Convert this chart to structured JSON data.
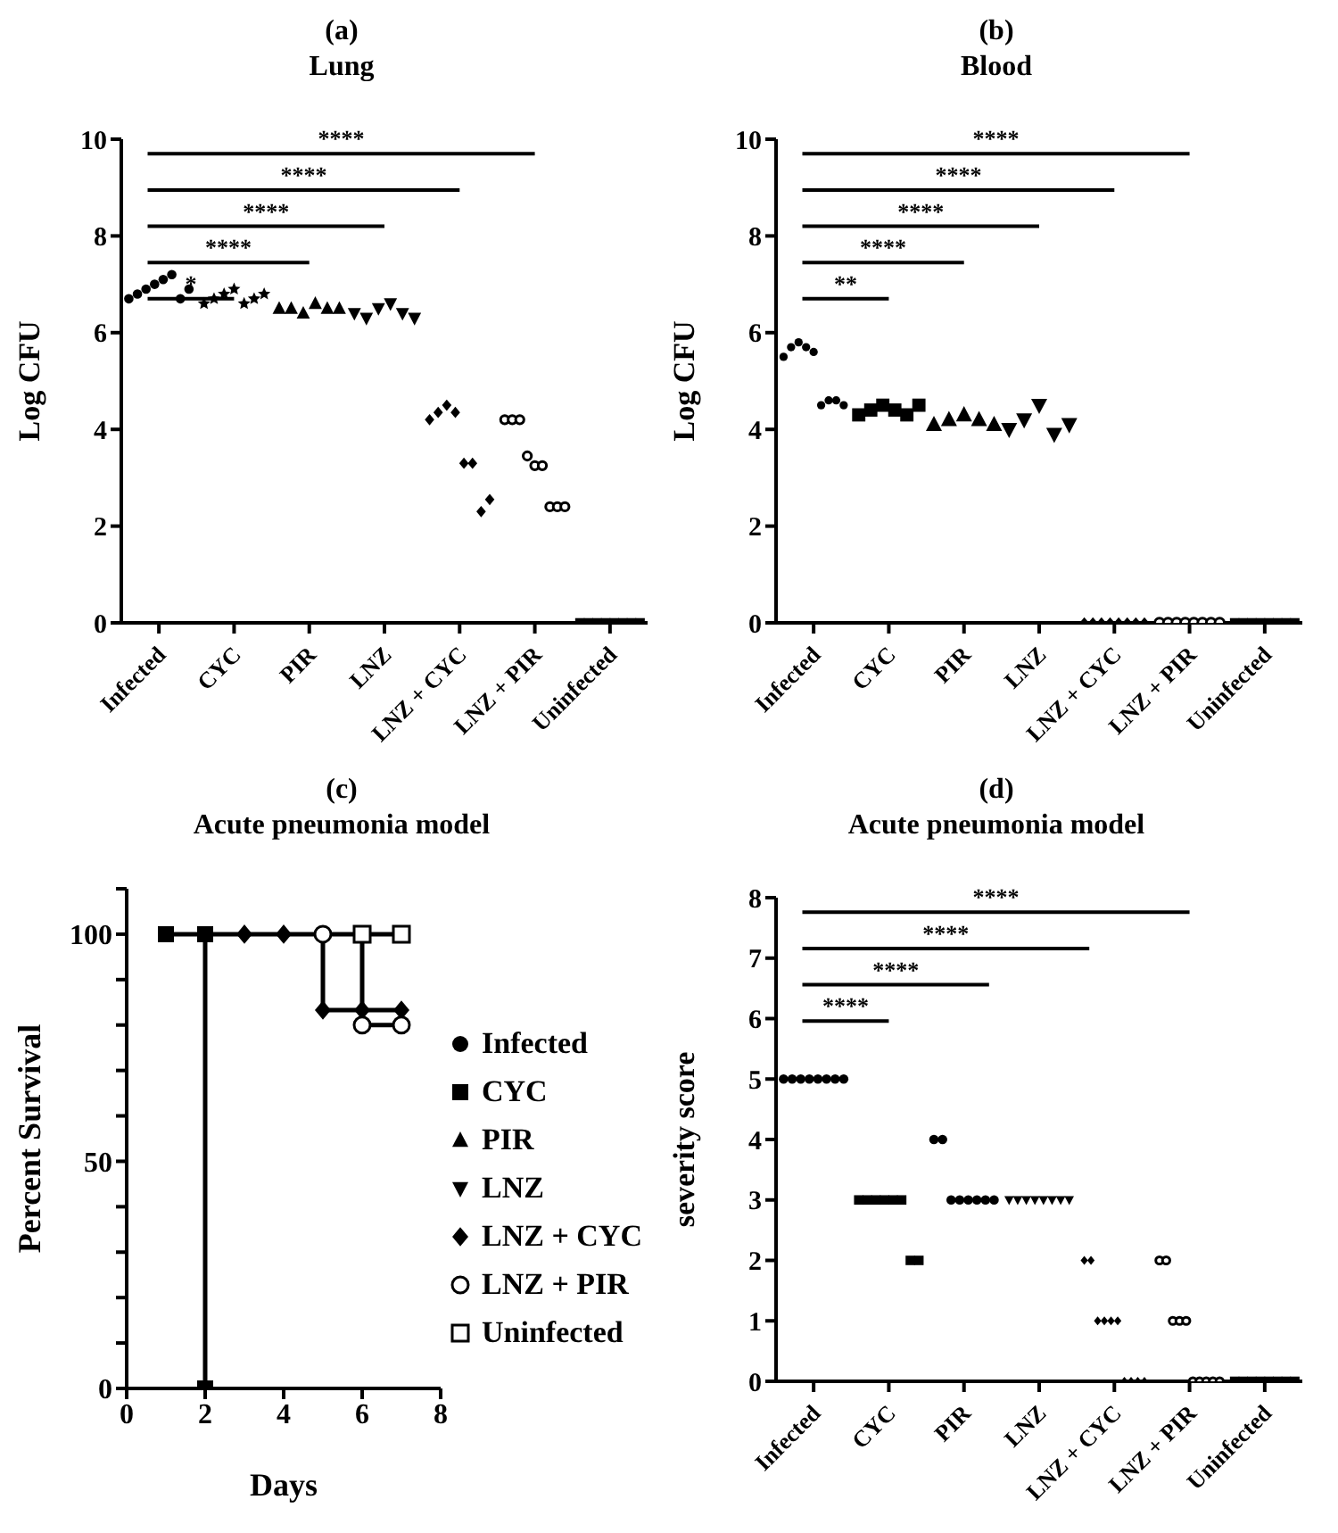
{
  "chart_data": [
    {
      "type": "scatter",
      "title": "(a)",
      "subtitle": "Lung",
      "ylabel": "Log CFU",
      "categories": [
        "Infected",
        "CYC",
        "PIR",
        "LNZ",
        "LNZ + CYC",
        "LNZ + PIR",
        "Uninfected"
      ],
      "ylim": [
        0,
        10
      ],
      "yticks": [
        0,
        2,
        4,
        6,
        8,
        10
      ],
      "series": [
        {
          "color": "#000000",
          "marker": "circle",
          "x": [
            "Infected",
            "Infected",
            "Infected",
            "Infected",
            "Infected",
            "Infected",
            "Infected",
            "Infected"
          ],
          "values": [
            6.7,
            6.8,
            6.9,
            7.0,
            7.1,
            7.2,
            6.7,
            6.9
          ]
        },
        {
          "color": "#000000",
          "marker": "star",
          "x": [
            "CYC",
            "CYC",
            "CYC",
            "CYC",
            "CYC",
            "CYC",
            "CYC"
          ],
          "values": [
            6.6,
            6.7,
            6.8,
            6.9,
            6.6,
            6.7,
            6.8
          ]
        },
        {
          "color": "#000000",
          "marker": "triangle",
          "x": [
            "PIR",
            "PIR",
            "PIR",
            "PIR",
            "PIR",
            "PIR"
          ],
          "values": [
            6.5,
            6.5,
            6.4,
            6.6,
            6.5,
            6.5
          ]
        },
        {
          "color": "#000000",
          "marker": "triangle-down",
          "x": [
            "LNZ",
            "LNZ",
            "LNZ",
            "LNZ",
            "LNZ",
            "LNZ"
          ],
          "values": [
            6.4,
            6.3,
            6.5,
            6.6,
            6.4,
            6.3
          ]
        },
        {
          "color": "#000000",
          "marker": "diamond",
          "x": [
            "LNZ + CYC",
            "LNZ + CYC",
            "LNZ + CYC",
            "LNZ + CYC",
            "LNZ + CYC",
            "LNZ + CYC",
            "LNZ + CYC",
            "LNZ + CYC"
          ],
          "values": [
            4.2,
            4.35,
            4.5,
            4.35,
            3.3,
            3.3,
            2.3,
            2.55
          ]
        },
        {
          "color": "#000000",
          "marker": "circle-open",
          "x": [
            "LNZ + PIR",
            "LNZ + PIR",
            "LNZ + PIR",
            "LNZ + PIR",
            "LNZ + PIR",
            "LNZ + PIR",
            "LNZ + PIR",
            "LNZ + PIR",
            "LNZ + PIR"
          ],
          "values": [
            4.2,
            4.2,
            4.2,
            3.45,
            3.25,
            3.25,
            2.4,
            2.4,
            2.4
          ]
        },
        {
          "color": "#000000",
          "marker": "square",
          "x": [
            "Uninfected",
            "Uninfected",
            "Uninfected",
            "Uninfected",
            "Uninfected",
            "Uninfected",
            "Uninfected",
            "Uninfected"
          ],
          "values": [
            0,
            0,
            0,
            0,
            0,
            0,
            0,
            0
          ]
        }
      ],
      "annotations": [
        "*",
        "****",
        "****",
        "****",
        "****"
      ]
    },
    {
      "type": "scatter",
      "title": "(b)",
      "subtitle": "Blood",
      "ylabel": "Log CFU",
      "categories": [
        "Infected",
        "CYC",
        "PIR",
        "LNZ",
        "LNZ + CYC",
        "LNZ + PIR",
        "Uninfected"
      ],
      "ylim": [
        0,
        10
      ],
      "yticks": [
        0,
        2,
        4,
        6,
        8,
        10
      ],
      "series": [
        {
          "color": "#000000",
          "marker": "circle",
          "x": [
            "Infected",
            "Infected",
            "Infected",
            "Infected",
            "Infected",
            "Infected",
            "Infected",
            "Infected",
            "Infected"
          ],
          "values": [
            5.5,
            5.7,
            5.8,
            5.7,
            5.6,
            4.5,
            4.6,
            4.6,
            4.5
          ]
        },
        {
          "color": "#000000",
          "marker": "square",
          "x": [
            "CYC",
            "CYC",
            "CYC",
            "CYC",
            "CYC",
            "CYC"
          ],
          "values": [
            4.3,
            4.4,
            4.5,
            4.4,
            4.3,
            4.5
          ]
        },
        {
          "color": "#000000",
          "marker": "triangle",
          "x": [
            "PIR",
            "PIR",
            "PIR",
            "PIR",
            "PIR"
          ],
          "values": [
            4.1,
            4.2,
            4.3,
            4.2,
            4.1
          ]
        },
        {
          "color": "#000000",
          "marker": "triangle-down",
          "x": [
            "LNZ",
            "LNZ",
            "LNZ",
            "LNZ",
            "LNZ"
          ],
          "values": [
            4.0,
            4.2,
            4.5,
            3.9,
            4.1
          ]
        },
        {
          "color": "#000000",
          "marker": "diamond",
          "x": [
            "LNZ + CYC",
            "LNZ + CYC",
            "LNZ + CYC",
            "LNZ + CYC",
            "LNZ + CYC",
            "LNZ + CYC",
            "LNZ + CYC",
            "LNZ + CYC"
          ],
          "values": [
            0,
            0,
            0,
            0,
            0,
            0,
            0,
            0
          ]
        },
        {
          "color": "#000000",
          "marker": "circle-open",
          "x": [
            "LNZ + PIR",
            "LNZ + PIR",
            "LNZ + PIR",
            "LNZ + PIR",
            "LNZ + PIR",
            "LNZ + PIR",
            "LNZ + PIR",
            "LNZ + PIR"
          ],
          "values": [
            0,
            0,
            0,
            0,
            0,
            0,
            0,
            0
          ]
        },
        {
          "color": "#000000",
          "marker": "square",
          "x": [
            "Uninfected",
            "Uninfected",
            "Uninfected",
            "Uninfected",
            "Uninfected",
            "Uninfected",
            "Uninfected",
            "Uninfected"
          ],
          "values": [
            0,
            0,
            0,
            0,
            0,
            0,
            0,
            0
          ]
        }
      ],
      "annotations": [
        "**",
        "****",
        "****",
        "****",
        "****"
      ]
    },
    {
      "type": "step",
      "title": "(c)",
      "subtitle": "Acute pneumonia model",
      "xlabel": "Days",
      "ylabel": "Percent Survival",
      "xlim": [
        0,
        8
      ],
      "xticks": [
        0,
        2,
        4,
        6,
        8
      ],
      "ylim": [
        0,
        110
      ],
      "yticks": [
        0,
        {
          "value": 10,
          "label": null
        },
        {
          "value": 20,
          "label": null
        },
        {
          "value": 30,
          "label": null
        },
        {
          "value": 40,
          "label": null
        },
        50,
        {
          "value": 60,
          "label": null
        },
        {
          "value": 70,
          "label": null
        },
        {
          "value": 80,
          "label": null
        },
        {
          "value": 90,
          "label": null
        },
        100,
        {
          "value": 110,
          "label": null
        }
      ],
      "legend": "right",
      "series": [
        {
          "name": "Infected",
          "color": "#000000",
          "marker": "circle"
        },
        {
          "name": "CYC",
          "color": "#000000",
          "marker": "square",
          "x": [
            1,
            2,
            2
          ],
          "values": [
            100,
            100,
            0
          ]
        },
        {
          "name": "PIR",
          "color": "#000000",
          "marker": "triangle"
        },
        {
          "name": "LNZ",
          "color": "#000000",
          "marker": "triangle-down"
        },
        {
          "name": "LNZ + CYC",
          "color": "#000000",
          "marker": "diamond",
          "x": [
            2,
            3,
            4,
            5,
            6,
            7
          ],
          "values": [
            100,
            100,
            100,
            83.3,
            83.3,
            83.3
          ]
        },
        {
          "name": "LNZ + PIR",
          "color": "#000000",
          "marker": "circle-open",
          "x": [
            5,
            6,
            7
          ],
          "values": [
            100,
            80,
            80
          ]
        },
        {
          "name": "Uninfected",
          "color": "#000000",
          "marker": "square-open",
          "x": [
            6,
            7
          ],
          "values": [
            100,
            100
          ]
        }
      ]
    },
    {
      "type": "scatter",
      "title": "(d)",
      "subtitle": "Acute pneumonia model",
      "ylabel": "severity score",
      "categories": [
        "Infected",
        "CYC",
        "PIR",
        "LNZ",
        "LNZ + CYC",
        "LNZ + PIR",
        "Uninfected"
      ],
      "ylim": [
        0,
        8
      ],
      "yticks": [
        0,
        1,
        2,
        3,
        4,
        5,
        6,
        7,
        8
      ],
      "series": [
        {
          "color": "#000000",
          "marker": "circle",
          "x": [
            "Infected",
            "Infected",
            "Infected",
            "Infected",
            "Infected",
            "Infected",
            "Infected",
            "Infected"
          ],
          "values": [
            5,
            5,
            5,
            5,
            5,
            5,
            5,
            5
          ]
        },
        {
          "color": "#000000",
          "marker": "square",
          "x": [
            "CYC",
            "CYC",
            "CYC",
            "CYC",
            "CYC",
            "CYC",
            "CYC",
            "CYC"
          ],
          "values": [
            3,
            3,
            3,
            3,
            3,
            3,
            2,
            2
          ]
        },
        {
          "color": "#000000",
          "marker": "circle",
          "x": [
            "PIR",
            "PIR",
            "PIR",
            "PIR",
            "PIR",
            "PIR",
            "PIR",
            "PIR"
          ],
          "values": [
            4,
            4,
            3,
            3,
            3,
            3,
            3,
            3
          ]
        },
        {
          "color": "#000000",
          "marker": "triangle-down",
          "x": [
            "LNZ",
            "LNZ",
            "LNZ",
            "LNZ",
            "LNZ",
            "LNZ",
            "LNZ",
            "LNZ"
          ],
          "values": [
            3,
            3,
            3,
            3,
            3,
            3,
            3,
            3
          ]
        },
        {
          "color": "#000000",
          "marker": "diamond",
          "x": [
            "LNZ + CYC",
            "LNZ + CYC",
            "LNZ + CYC",
            "LNZ + CYC",
            "LNZ + CYC",
            "LNZ + CYC",
            "LNZ + CYC",
            "LNZ + CYC",
            "LNZ + CYC",
            "LNZ + CYC"
          ],
          "values": [
            2,
            2,
            1,
            1,
            1,
            1,
            0,
            0,
            0,
            0
          ]
        },
        {
          "color": "#000000",
          "marker": "circle-open",
          "x": [
            "LNZ + PIR",
            "LNZ + PIR",
            "LNZ + PIR",
            "LNZ + PIR",
            "LNZ + PIR",
            "LNZ + PIR",
            "LNZ + PIR",
            "LNZ + PIR",
            "LNZ + PIR",
            "LNZ + PIR"
          ],
          "values": [
            2,
            2,
            1,
            1,
            1,
            0,
            0,
            0,
            0,
            0
          ]
        },
        {
          "color": "#000000",
          "marker": "square",
          "x": [
            "Uninfected",
            "Uninfected",
            "Uninfected",
            "Uninfected",
            "Uninfected",
            "Uninfected",
            "Uninfected",
            "Uninfected"
          ],
          "values": [
            0,
            0,
            0,
            0,
            0,
            0,
            0,
            0
          ]
        }
      ],
      "annotations": [
        "****",
        "****",
        "****",
        "****"
      ]
    }
  ]
}
